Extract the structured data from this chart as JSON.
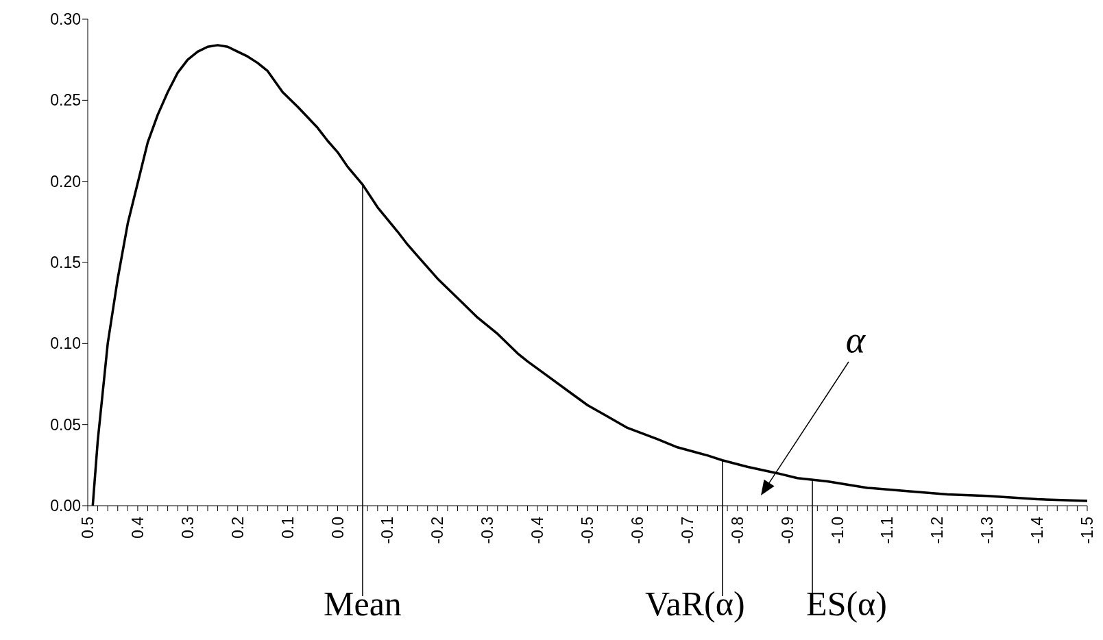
{
  "chart_data": {
    "type": "line",
    "x": [
      0.49,
      0.48,
      0.46,
      0.44,
      0.42,
      0.38,
      0.36,
      0.34,
      0.32,
      0.3,
      0.28,
      0.26,
      0.24,
      0.22,
      0.2,
      0.18,
      0.16,
      0.14,
      0.11,
      0.08,
      0.04,
      0.02,
      0.0,
      -0.02,
      -0.05,
      -0.08,
      -0.12,
      -0.14,
      -0.16,
      -0.2,
      -0.24,
      -0.28,
      -0.32,
      -0.36,
      -0.38,
      -0.42,
      -0.46,
      -0.5,
      -0.54,
      -0.58,
      -0.64,
      -0.68,
      -0.74,
      -0.77,
      -0.82,
      -0.88,
      -0.92,
      -0.98,
      -1.06,
      -1.14,
      -1.22,
      -1.3,
      -1.4,
      -1.5
    ],
    "series": [
      {
        "color": "#000000",
        "values": [
          0.0,
          0.04,
          0.1,
          0.14,
          0.174,
          0.224,
          0.241,
          0.255,
          0.267,
          0.275,
          0.28,
          0.283,
          0.284,
          0.283,
          0.28,
          0.277,
          0.273,
          0.268,
          0.255,
          0.246,
          0.233,
          0.225,
          0.218,
          0.209,
          0.198,
          0.184,
          0.169,
          0.161,
          0.154,
          0.14,
          0.128,
          0.116,
          0.106,
          0.094,
          0.089,
          0.08,
          0.071,
          0.062,
          0.055,
          0.048,
          0.041,
          0.036,
          0.031,
          0.028,
          0.024,
          0.02,
          0.017,
          0.015,
          0.011,
          0.009,
          0.007,
          0.006,
          0.004,
          0.003
        ]
      }
    ],
    "xlim": [
      0.5,
      -1.5
    ],
    "xticks": [
      {
        "value": 0.5,
        "label": "0.5"
      },
      {
        "value": 0.48,
        "label": null
      },
      {
        "value": 0.46,
        "label": null
      },
      {
        "value": 0.44,
        "label": null
      },
      {
        "value": 0.42,
        "label": null
      },
      {
        "value": 0.4,
        "label": "0.4"
      },
      {
        "value": 0.38,
        "label": null
      },
      {
        "value": 0.36,
        "label": null
      },
      {
        "value": 0.34,
        "label": null
      },
      {
        "value": 0.32,
        "label": null
      },
      {
        "value": 0.3,
        "label": "0.3"
      },
      {
        "value": 0.28,
        "label": null
      },
      {
        "value": 0.26,
        "label": null
      },
      {
        "value": 0.24,
        "label": null
      },
      {
        "value": 0.22,
        "label": null
      },
      {
        "value": 0.2,
        "label": "0.2"
      },
      {
        "value": 0.18,
        "label": null
      },
      {
        "value": 0.16,
        "label": null
      },
      {
        "value": 0.14,
        "label": null
      },
      {
        "value": 0.12,
        "label": null
      },
      {
        "value": 0.1,
        "label": "0.1"
      },
      {
        "value": 0.08,
        "label": null
      },
      {
        "value": 0.06,
        "label": null
      },
      {
        "value": 0.04,
        "label": null
      },
      {
        "value": 0.02,
        "label": null
      },
      {
        "value": 0,
        "label": "0.0"
      },
      {
        "value": -0.02,
        "label": null
      },
      {
        "value": -0.04,
        "label": null
      },
      {
        "value": -0.06,
        "label": null
      },
      {
        "value": -0.08,
        "label": null
      },
      {
        "value": -0.1,
        "label": "-0.1"
      },
      {
        "value": -0.12,
        "label": null
      },
      {
        "value": -0.14,
        "label": null
      },
      {
        "value": -0.16,
        "label": null
      },
      {
        "value": -0.18,
        "label": null
      },
      {
        "value": -0.2,
        "label": "-0.2"
      },
      {
        "value": -0.22,
        "label": null
      },
      {
        "value": -0.24,
        "label": null
      },
      {
        "value": -0.26,
        "label": null
      },
      {
        "value": -0.28,
        "label": null
      },
      {
        "value": -0.3,
        "label": "-0.3"
      },
      {
        "value": -0.32,
        "label": null
      },
      {
        "value": -0.34,
        "label": null
      },
      {
        "value": -0.36,
        "label": null
      },
      {
        "value": -0.38,
        "label": null
      },
      {
        "value": -0.4,
        "label": "-0.4"
      },
      {
        "value": -0.42,
        "label": null
      },
      {
        "value": -0.44,
        "label": null
      },
      {
        "value": -0.46,
        "label": null
      },
      {
        "value": -0.48,
        "label": null
      },
      {
        "value": -0.5,
        "label": "-0.5"
      },
      {
        "value": -0.52,
        "label": null
      },
      {
        "value": -0.54,
        "label": null
      },
      {
        "value": -0.56,
        "label": null
      },
      {
        "value": -0.58,
        "label": null
      },
      {
        "value": -0.6,
        "label": "-0.6"
      },
      {
        "value": -0.62,
        "label": null
      },
      {
        "value": -0.64,
        "label": null
      },
      {
        "value": -0.66,
        "label": null
      },
      {
        "value": -0.68,
        "label": null
      },
      {
        "value": -0.7,
        "label": "-0.7"
      },
      {
        "value": -0.72,
        "label": null
      },
      {
        "value": -0.74,
        "label": null
      },
      {
        "value": -0.76,
        "label": null
      },
      {
        "value": -0.78,
        "label": null
      },
      {
        "value": -0.8,
        "label": "-0.8"
      },
      {
        "value": -0.82,
        "label": null
      },
      {
        "value": -0.84,
        "label": null
      },
      {
        "value": -0.86,
        "label": null
      },
      {
        "value": -0.88,
        "label": null
      },
      {
        "value": -0.9,
        "label": "-0.9"
      },
      {
        "value": -0.92,
        "label": null
      },
      {
        "value": -0.94,
        "label": null
      },
      {
        "value": -0.96,
        "label": null
      },
      {
        "value": -0.98,
        "label": null
      },
      {
        "value": -1.0,
        "label": "-1.0"
      },
      {
        "value": -1.02,
        "label": null
      },
      {
        "value": -1.04,
        "label": null
      },
      {
        "value": -1.06,
        "label": null
      },
      {
        "value": -1.08,
        "label": null
      },
      {
        "value": -1.1,
        "label": "-1.1"
      },
      {
        "value": -1.12,
        "label": null
      },
      {
        "value": -1.14,
        "label": null
      },
      {
        "value": -1.16,
        "label": null
      },
      {
        "value": -1.18,
        "label": null
      },
      {
        "value": -1.2,
        "label": "-1.2"
      },
      {
        "value": -1.22,
        "label": null
      },
      {
        "value": -1.24,
        "label": null
      },
      {
        "value": -1.26,
        "label": null
      },
      {
        "value": -1.28,
        "label": null
      },
      {
        "value": -1.3,
        "label": "-1.3"
      },
      {
        "value": -1.32,
        "label": null
      },
      {
        "value": -1.34,
        "label": null
      },
      {
        "value": -1.36,
        "label": null
      },
      {
        "value": -1.38,
        "label": null
      },
      {
        "value": -1.4,
        "label": "-1.4"
      },
      {
        "value": -1.42,
        "label": null
      },
      {
        "value": -1.44,
        "label": null
      },
      {
        "value": -1.46,
        "label": null
      },
      {
        "value": -1.48,
        "label": null
      },
      {
        "value": -1.5,
        "label": "-1.5"
      }
    ],
    "ylim": [
      0,
      0.3
    ],
    "yticks": [
      {
        "value": 0,
        "label": "0.00"
      },
      {
        "value": 0.05,
        "label": "0.05"
      },
      {
        "value": 0.1,
        "label": "0.10"
      },
      {
        "value": 0.15,
        "label": "0.15"
      },
      {
        "value": 0.2,
        "label": "0.20"
      },
      {
        "value": 0.25,
        "label": "0.25"
      },
      {
        "value": 0.3,
        "label": "0.30"
      }
    ],
    "ref_lines": [
      {
        "axis": "x",
        "value": -0.05,
        "label": "Mean"
      },
      {
        "axis": "x",
        "value": -0.77,
        "label": "VaR(α)"
      },
      {
        "axis": "x",
        "value": -0.95,
        "label": "ES(α)"
      }
    ],
    "annotations": [
      "α"
    ],
    "grid": false,
    "legend": false,
    "marker": "none",
    "line_style": "solid"
  }
}
